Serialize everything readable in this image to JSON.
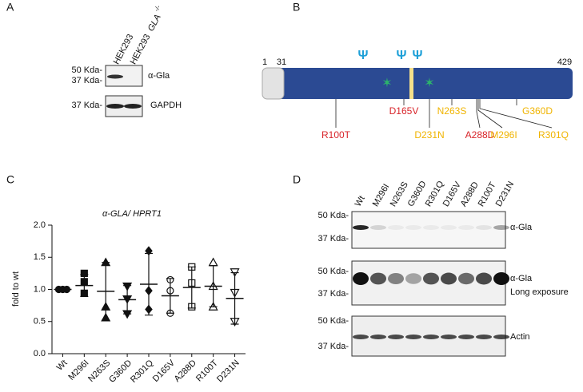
{
  "panel_labels": [
    "A",
    "B",
    "C",
    "D"
  ],
  "panel_a": {
    "lane_1": "HEK293",
    "lane_2": "HEK293",
    "lane_2_gene": "GLA",
    "lane_2_sup": "-/-",
    "blots": [
      {
        "markers": [
          "50 Kda-",
          "37 Kda-"
        ],
        "labels": [
          "α-Gla"
        ]
      },
      {
        "markers": [
          "37 Kda-"
        ],
        "labels": [
          "GAPDH"
        ]
      }
    ]
  },
  "panel_b": {
    "start": "1",
    "signal_end": "31",
    "end": "429",
    "glyco_symbol": "Ψ",
    "mutations": [
      {
        "label": "R100T",
        "color": "#d8242a"
      },
      {
        "label": "D165V",
        "color": "#d8242a"
      },
      {
        "label": "D231N",
        "color": "#f0b400"
      },
      {
        "label": "N263S",
        "color": "#f0b400"
      },
      {
        "label": "A288D",
        "color": "#d8242a"
      },
      {
        "label": "M296I",
        "color": "#f0b400"
      },
      {
        "label": "G360D",
        "color": "#f0b400"
      },
      {
        "label": "R301Q",
        "color": "#f0b400"
      }
    ]
  },
  "chart_data": {
    "type": "scatter",
    "title": "α-GLA/ HPRT1",
    "ylabel": "fold to wt",
    "categories": [
      "Wt",
      "M296I",
      "N263S",
      "G360D",
      "R301Q",
      "D165V",
      "A288D",
      "R100T",
      "D231N"
    ],
    "markers": [
      "circle",
      "square",
      "triangle",
      "triangle-down",
      "diamond",
      "circle-open",
      "square-open",
      "triangle-open",
      "triangle-down-open"
    ],
    "points": [
      [
        1.0,
        1.0,
        1.0
      ],
      [
        1.25,
        1.12,
        0.94
      ],
      [
        1.42,
        0.73,
        0.56
      ],
      [
        1.05,
        0.85,
        0.62
      ],
      [
        1.6,
        0.98,
        0.69
      ],
      [
        1.15,
        0.98,
        0.63
      ],
      [
        1.35,
        1.1,
        0.73
      ],
      [
        1.42,
        1.05,
        0.73
      ],
      [
        1.27,
        0.95,
        0.5
      ]
    ],
    "means": [
      1.0,
      1.06,
      0.97,
      0.84,
      1.08,
      0.9,
      1.03,
      1.05,
      0.86
    ],
    "sd": [
      0.01,
      0.17,
      0.45,
      0.22,
      0.48,
      0.27,
      0.32,
      0.32,
      0.4
    ],
    "ylim": [
      0,
      2
    ],
    "yticks": [
      {
        "value": 0,
        "label": "0.0"
      },
      {
        "value": 0.5,
        "label": "0.5"
      },
      {
        "value": 1,
        "label": "1.0"
      },
      {
        "value": 1.5,
        "label": "1.5"
      },
      {
        "value": 2,
        "label": "2.0"
      }
    ]
  },
  "panel_d": {
    "lanes": [
      "Wt",
      "M296I",
      "N263S",
      "G360D",
      "R301Q",
      "D165V",
      "A288D",
      "R100T",
      "D231N"
    ],
    "blots": [
      {
        "markers": [
          "50 Kda-",
          "37 Kda-"
        ],
        "labels": [
          "α-Gla"
        ]
      },
      {
        "markers": [
          "50 Kda-",
          "37 Kda-"
        ],
        "labels": [
          "α-Gla",
          "Long exposure"
        ]
      },
      {
        "markers": [
          "50 Kda-",
          "37 Kda-"
        ],
        "labels": [
          "Actin"
        ]
      }
    ]
  }
}
